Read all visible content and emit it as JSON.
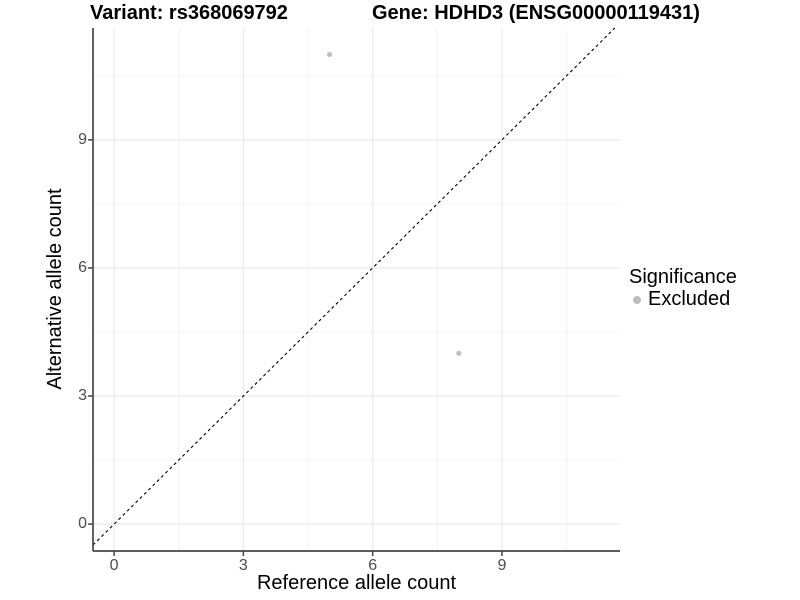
{
  "titles": {
    "variant": "Variant: rs368069792",
    "gene": "Gene: HDHD3 (ENSG00000119431)"
  },
  "chart_data": {
    "type": "scatter",
    "title": "Variant: rs368069792 — Gene: HDHD3 (ENSG00000119431)",
    "xlabel": "Reference allele count",
    "ylabel": "Alternative allele count",
    "x_ticks": [
      0,
      3,
      6,
      9
    ],
    "y_ticks": [
      0,
      3,
      6,
      9
    ],
    "x_minor_gridlines": [
      1.5,
      4.5,
      7.5,
      10.5
    ],
    "y_minor_gridlines": [
      1.5,
      4.5,
      7.5,
      10.5
    ],
    "xlim": [
      -0.49,
      11.74
    ],
    "ylim": [
      -0.63,
      11.62
    ],
    "grid": true,
    "legend_position": "right",
    "series": [
      {
        "name": "Excluded",
        "color": "#bebebe",
        "points": [
          {
            "x": 5,
            "y": 11
          },
          {
            "x": 8,
            "y": 4
          }
        ]
      }
    ],
    "reference_line": {
      "kind": "identity y=x",
      "style": "dashed",
      "color": "#000000"
    }
  },
  "legend": {
    "title": "Significance",
    "items": [
      {
        "label": "Excluded",
        "color": "#bebebe",
        "marker": "circle"
      }
    ]
  },
  "colors": {
    "background": "#ffffff",
    "axis_line": "#464646",
    "tick_label": "#4d4d4d",
    "grid_major": "#e8e8e8",
    "grid_minor": "#f4f4f4",
    "point": "#bebebe"
  }
}
